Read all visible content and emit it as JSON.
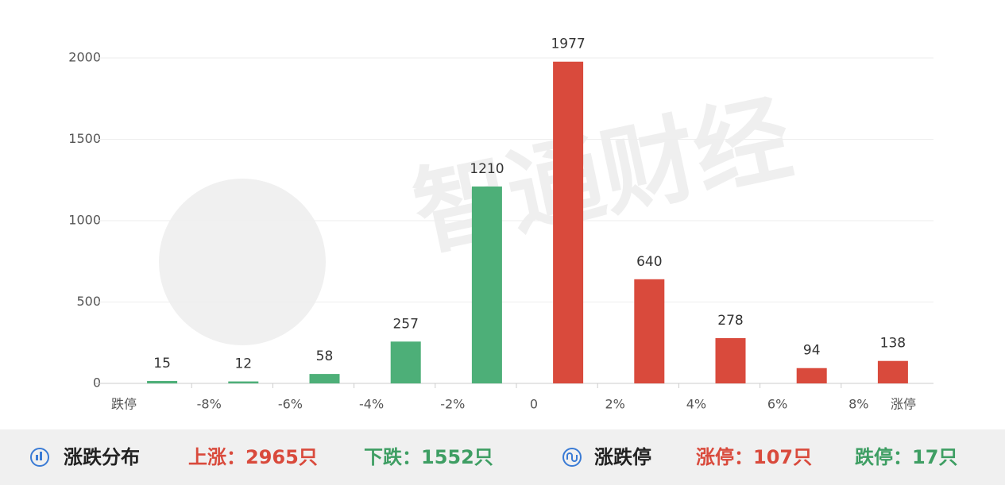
{
  "chart_data": {
    "type": "bar",
    "watermark": "智通财经",
    "categories": [
      null,
      null,
      null,
      null,
      null,
      null,
      null,
      null,
      null,
      null
    ],
    "values": [
      15,
      12,
      58,
      257,
      1210,
      1977,
      640,
      278,
      94,
      138
    ],
    "colors": [
      "#4daf78",
      "#4daf78",
      "#4daf78",
      "#4daf78",
      "#4daf78",
      "#d94a3c",
      "#d94a3c",
      "#d94a3c",
      "#d94a3c",
      "#d94a3c"
    ],
    "edge_labels": [
      "跌停",
      "-8%",
      "-6%",
      "-4%",
      "-2%",
      "0",
      "2%",
      "4%",
      "6%",
      "8%",
      "涨停"
    ],
    "ylim": [
      0,
      2000
    ],
    "yticks": [
      0,
      500,
      1000,
      1500,
      2000
    ],
    "grid": true
  },
  "footer": {
    "left_title": "涨跌分布",
    "rise": "上涨：2965只",
    "fall": "下跌：1552只",
    "right_title": "涨跌停",
    "limit_up": "涨停：107只",
    "limit_down": "跌停：17只"
  }
}
